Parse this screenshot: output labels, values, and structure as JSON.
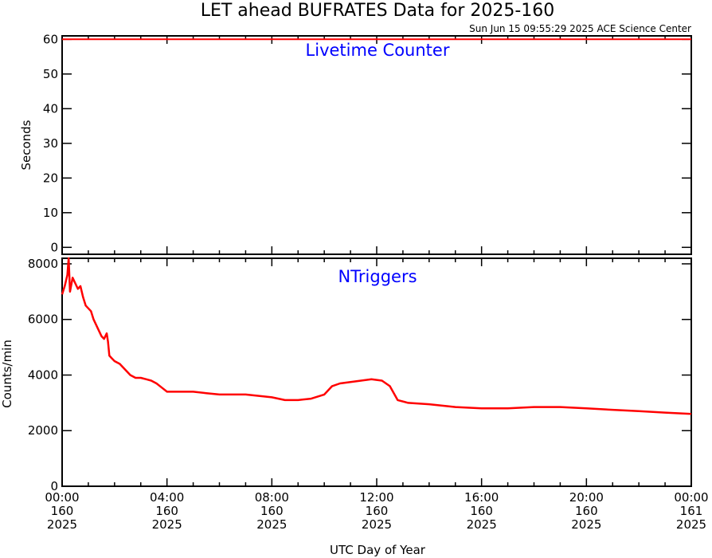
{
  "header": {
    "title": "LET ahead BUFRATES Data for 2025-160",
    "timestamp": "Sun Jun 15 09:55:29 2025 ACE Science Center"
  },
  "x_axis": {
    "label": "UTC Day of Year",
    "ticks": [
      {
        "hour": 0,
        "time": "00:00",
        "doy": "160",
        "year": "2025"
      },
      {
        "hour": 4,
        "time": "04:00",
        "doy": "160",
        "year": "2025"
      },
      {
        "hour": 8,
        "time": "08:00",
        "doy": "160",
        "year": "2025"
      },
      {
        "hour": 12,
        "time": "12:00",
        "doy": "160",
        "year": "2025"
      },
      {
        "hour": 16,
        "time": "16:00",
        "doy": "160",
        "year": "2025"
      },
      {
        "hour": 20,
        "time": "20:00",
        "doy": "160",
        "year": "2025"
      },
      {
        "hour": 24,
        "time": "00:00",
        "doy": "161",
        "year": "2025"
      }
    ],
    "range_hours": [
      0,
      24
    ]
  },
  "chart_data": [
    {
      "type": "line",
      "title": "Livetime Counter",
      "ylabel": "Seconds",
      "ylim": [
        -2,
        61
      ],
      "yticks": [
        0,
        10,
        20,
        30,
        40,
        50,
        60
      ],
      "line_color": "#ff0000",
      "series": [
        {
          "x": [
            0,
            24
          ],
          "values": [
            60,
            60
          ]
        }
      ]
    },
    {
      "type": "line",
      "title": "NTriggers",
      "ylabel": "Counts/min",
      "ylim": [
        0,
        8200
      ],
      "yticks": [
        0,
        2000,
        4000,
        6000,
        8000
      ],
      "line_color": "#ff0000",
      "series": [
        {
          "x": [
            0,
            0.1,
            0.2,
            0.25,
            0.3,
            0.4,
            0.5,
            0.6,
            0.7,
            0.8,
            0.9,
            1.0,
            1.1,
            1.2,
            1.3,
            1.4,
            1.5,
            1.6,
            1.7,
            1.75,
            1.8,
            1.9,
            2.0,
            2.2,
            2.4,
            2.6,
            2.8,
            3.0,
            3.2,
            3.4,
            3.6,
            3.8,
            4.0,
            4.5,
            5.0,
            5.5,
            6.0,
            6.5,
            7.0,
            7.5,
            8.0,
            8.5,
            9.0,
            9.5,
            10.0,
            10.3,
            10.6,
            11.0,
            11.4,
            11.8,
            12.2,
            12.5,
            12.8,
            13.2,
            14.0,
            15.0,
            16.0,
            17.0,
            18.0,
            19.0,
            20.0,
            21.0,
            22.0,
            23.0,
            24.0
          ],
          "values": [
            6900,
            7200,
            7600,
            8200,
            7000,
            7500,
            7300,
            7100,
            7200,
            6800,
            6500,
            6400,
            6300,
            6000,
            5800,
            5600,
            5400,
            5300,
            5500,
            5200,
            4700,
            4600,
            4500,
            4400,
            4200,
            4000,
            3900,
            3900,
            3850,
            3800,
            3700,
            3550,
            3400,
            3400,
            3400,
            3350,
            3300,
            3300,
            3300,
            3250,
            3200,
            3100,
            3100,
            3150,
            3300,
            3600,
            3700,
            3750,
            3800,
            3850,
            3800,
            3600,
            3100,
            3000,
            2950,
            2850,
            2800,
            2800,
            2850,
            2850,
            2800,
            2750,
            2700,
            2650,
            2600
          ]
        }
      ]
    }
  ]
}
